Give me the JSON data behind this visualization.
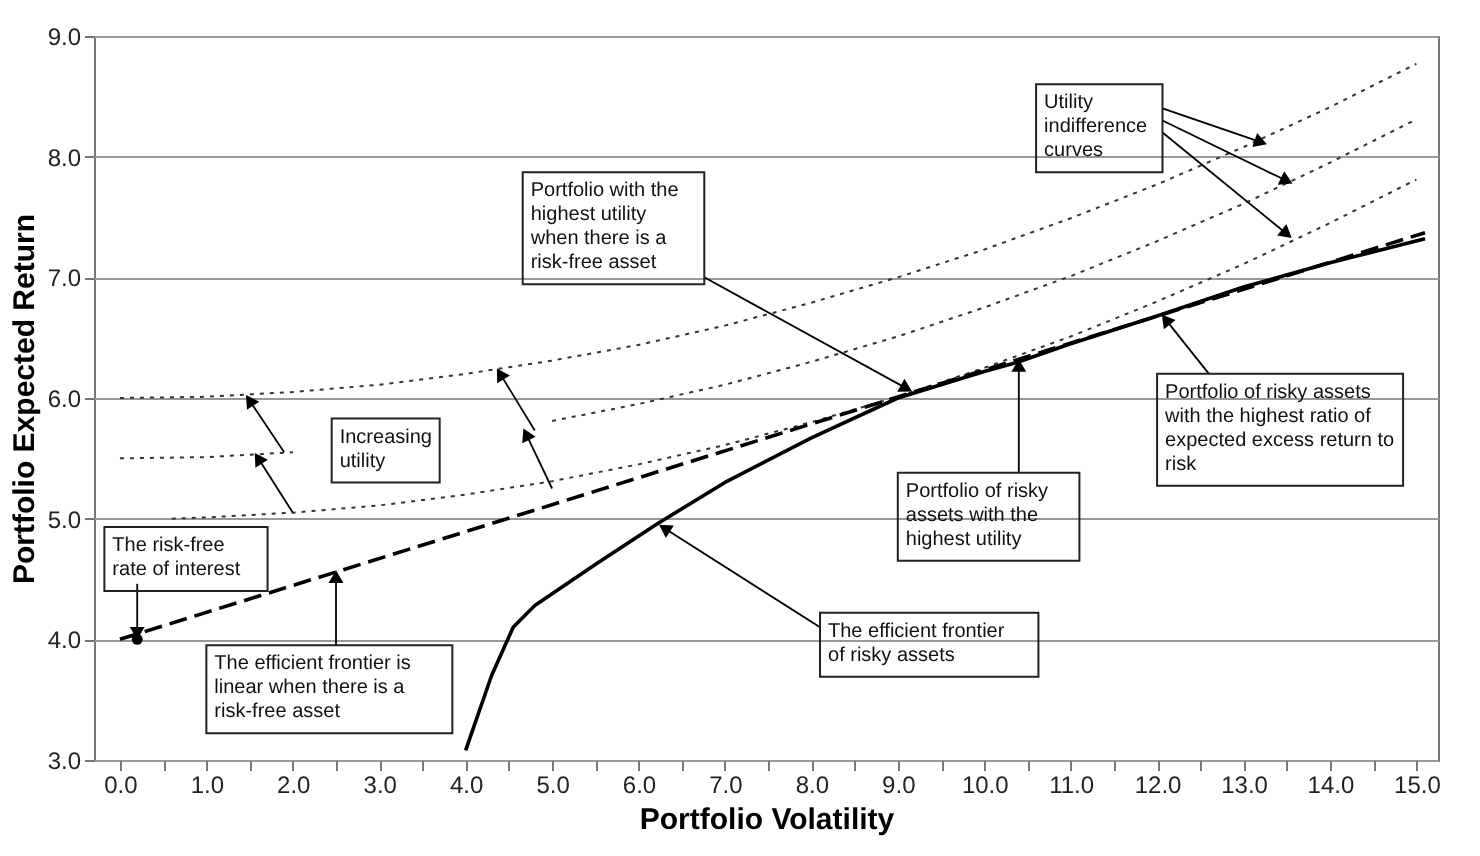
{
  "chart_data": {
    "type": "line",
    "xlabel": "Portfolio Volatility",
    "ylabel": "Portfolio Expected Return",
    "xlim": [
      -0.3,
      15.25
    ],
    "ylim": [
      3.0,
      9.0
    ],
    "xticks": [
      {
        "value": 0,
        "label": "0.0"
      },
      {
        "value": 0.5,
        "label": null
      },
      {
        "value": 1,
        "label": "1.0"
      },
      {
        "value": 1.5,
        "label": null
      },
      {
        "value": 2,
        "label": "2.0"
      },
      {
        "value": 2.5,
        "label": null
      },
      {
        "value": 3,
        "label": "3.0"
      },
      {
        "value": 3.5,
        "label": null
      },
      {
        "value": 4,
        "label": "4.0"
      },
      {
        "value": 4.5,
        "label": null
      },
      {
        "value": 5,
        "label": "5.0"
      },
      {
        "value": 5.5,
        "label": null
      },
      {
        "value": 6,
        "label": "6.0"
      },
      {
        "value": 6.5,
        "label": null
      },
      {
        "value": 7,
        "label": "7.0"
      },
      {
        "value": 7.5,
        "label": null
      },
      {
        "value": 8,
        "label": "8.0"
      },
      {
        "value": 8.5,
        "label": null
      },
      {
        "value": 9,
        "label": "9.0"
      },
      {
        "value": 9.5,
        "label": null
      },
      {
        "value": 10,
        "label": "10.0"
      },
      {
        "value": 10.5,
        "label": null
      },
      {
        "value": 11,
        "label": "11.0"
      },
      {
        "value": 11.5,
        "label": null
      },
      {
        "value": 12,
        "label": "12.0"
      },
      {
        "value": 12.5,
        "label": null
      },
      {
        "value": 13,
        "label": "13.0"
      },
      {
        "value": 13.5,
        "label": null
      },
      {
        "value": 14,
        "label": "14.0"
      },
      {
        "value": 14.5,
        "label": null
      },
      {
        "value": 15,
        "label": "15.0"
      }
    ],
    "yticks": [
      {
        "value": 3,
        "label": "3.0"
      },
      {
        "value": 4,
        "label": "4.0"
      },
      {
        "value": 5,
        "label": "5.0"
      },
      {
        "value": 6,
        "label": "6.0"
      },
      {
        "value": 7,
        "label": "7.0"
      },
      {
        "value": 8,
        "label": "8.0"
      },
      {
        "value": 9,
        "label": "9.0"
      }
    ],
    "grid": "y",
    "series": [
      {
        "line_style": "dotted",
        "color": "#333333",
        "x": [
          0,
          1,
          2,
          3,
          4,
          5,
          6,
          7,
          8,
          9,
          10,
          11,
          12,
          13,
          14,
          15
        ],
        "values": [
          6.0,
          6.01,
          6.05,
          6.11,
          6.2,
          6.31,
          6.44,
          6.6,
          6.79,
          7.0,
          7.23,
          7.49,
          7.77,
          8.08,
          8.41,
          8.77
        ]
      },
      {
        "line_style": "dotted",
        "color": "#333333",
        "x": [
          0,
          1,
          2,
          3,
          4,
          5,
          6,
          7,
          8,
          9,
          10,
          11,
          12,
          13,
          14,
          15
        ],
        "values": [
          5.5,
          5.51,
          5.55,
          null,
          null,
          5.81,
          5.95,
          6.11,
          6.3,
          6.51,
          6.75,
          7.01,
          7.3,
          7.61,
          7.95,
          8.31
        ]
      },
      {
        "line_style": "dotted",
        "color": "#333333",
        "x": [
          0.6,
          1,
          2,
          3,
          4,
          5,
          6,
          7,
          8,
          9,
          10,
          11,
          12,
          13,
          14,
          15
        ],
        "values": [
          5.0,
          5.01,
          5.05,
          5.11,
          5.2,
          5.31,
          5.45,
          5.61,
          5.8,
          6.01,
          6.25,
          6.51,
          6.8,
          7.11,
          7.45,
          7.81
        ]
      },
      {
        "line_style": "dashed",
        "color": "#000000",
        "x": [
          0,
          15.1
        ],
        "values": [
          4.0,
          7.37
        ]
      },
      {
        "line_style": "solid",
        "color": "#000000",
        "x": [
          4.0,
          4.3,
          4.55,
          4.8,
          5.5,
          6.2,
          7,
          8,
          9,
          10,
          10.4,
          11,
          12,
          13,
          14,
          15.1
        ],
        "values": [
          3.08,
          3.7,
          4.1,
          4.28,
          4.62,
          4.95,
          5.3,
          5.67,
          6.0,
          6.22,
          6.3,
          6.45,
          6.68,
          6.92,
          7.12,
          7.32
        ]
      },
      {
        "type": "scatter",
        "marker": "circle",
        "color": "#000000",
        "x": [
          0.2
        ],
        "values": [
          4.0
        ]
      }
    ],
    "annotations": [
      {
        "text": "The risk-free rate of interest",
        "x": 0.2,
        "y": 4.05
      },
      {
        "text": "The efficient frontier is linear when there is a risk-free asset",
        "x": 2.5,
        "y": 4.52
      },
      "Increasing utility",
      {
        "text": "Portfolio with the highest utility when there is a risk-free asset",
        "x": 9.1,
        "y": 6.08
      },
      {
        "text": "Utility indifference curves",
        "x": 13.5,
        "y": 7.8
      },
      {
        "text": "Portfolio of risky assets with the highest utility",
        "x": 10.4,
        "y": 6.27
      },
      {
        "text": "Portfolio of risky assets with the highest ratio of expected excess return to risk",
        "x": 12.1,
        "y": 6.65
      },
      {
        "text": "The efficient frontier of risky assets",
        "x": 6.3,
        "y": 4.92
      }
    ]
  }
}
